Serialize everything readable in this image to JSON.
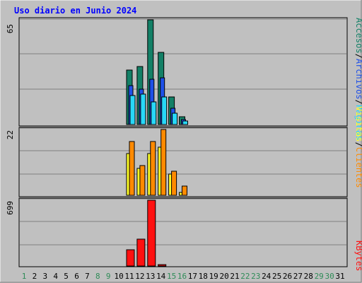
{
  "chart_data": {
    "type": "bar",
    "title": "Uso diario en Junio 2024",
    "days": [
      "1",
      "2",
      "3",
      "4",
      "5",
      "6",
      "7",
      "8",
      "9",
      "10",
      "11",
      "12",
      "13",
      "14",
      "15",
      "16",
      "17",
      "18",
      "19",
      "20",
      "21",
      "22",
      "23",
      "24",
      "25",
      "26",
      "27",
      "28",
      "29",
      "30",
      "31"
    ],
    "weekend_days": [
      1,
      8,
      9,
      15,
      16,
      22,
      23,
      29,
      30
    ],
    "colors": {
      "title": "#0000ff",
      "background": "#c0c0c0",
      "weekend_label": "#2e8b57",
      "weekday_label": "#000000",
      "accesos": "#138066",
      "archivos": "#1e50e8",
      "paginas": "#28d8f8",
      "visitas": "#ffff28",
      "clientes": "#ff8a00",
      "kbytes": "#ff1010"
    },
    "legend_top": {
      "accesos": "Accesos",
      "archivos": "Archivos",
      "paginas": "Páginas",
      "sep": "/"
    },
    "legend_mid": {
      "clientes": "Clientes",
      "visitas": "Visitas",
      "sep": "/"
    },
    "legend_bottom": {
      "kbytes": "KBytes"
    },
    "panels": [
      {
        "max_label": "65",
        "ymax": 65,
        "series": [
          {
            "name": "Accesos",
            "key": "accesos",
            "values": {
              "11": 34,
              "12": 36,
              "13": 65,
              "14": 45,
              "15": 17,
              "16": 5
            }
          },
          {
            "name": "Archivos",
            "key": "archivos",
            "values": {
              "11": 24,
              "12": 22,
              "13": 28,
              "14": 29,
              "15": 10,
              "16": 3
            }
          },
          {
            "name": "Páginas",
            "key": "paginas",
            "values": {
              "11": 18,
              "12": 19,
              "13": 14,
              "14": 17,
              "15": 7,
              "16": 2
            }
          }
        ]
      },
      {
        "max_label": "22",
        "ymax": 22,
        "series": [
          {
            "name": "Visitas",
            "key": "visitas",
            "values": {
              "11": 14,
              "12": 9,
              "13": 14,
              "14": 16,
              "15": 7,
              "16": 1
            }
          },
          {
            "name": "Clientes",
            "key": "clientes",
            "values": {
              "11": 18,
              "12": 10,
              "13": 18,
              "14": 22,
              "15": 8,
              "16": 3
            }
          }
        ]
      },
      {
        "max_label": "699",
        "ymax": 699,
        "series": [
          {
            "name": "KBytes",
            "key": "kbytes",
            "values": {
              "11": 176,
              "12": 284,
              "13": 699,
              "14": 3
            }
          }
        ]
      }
    ]
  }
}
